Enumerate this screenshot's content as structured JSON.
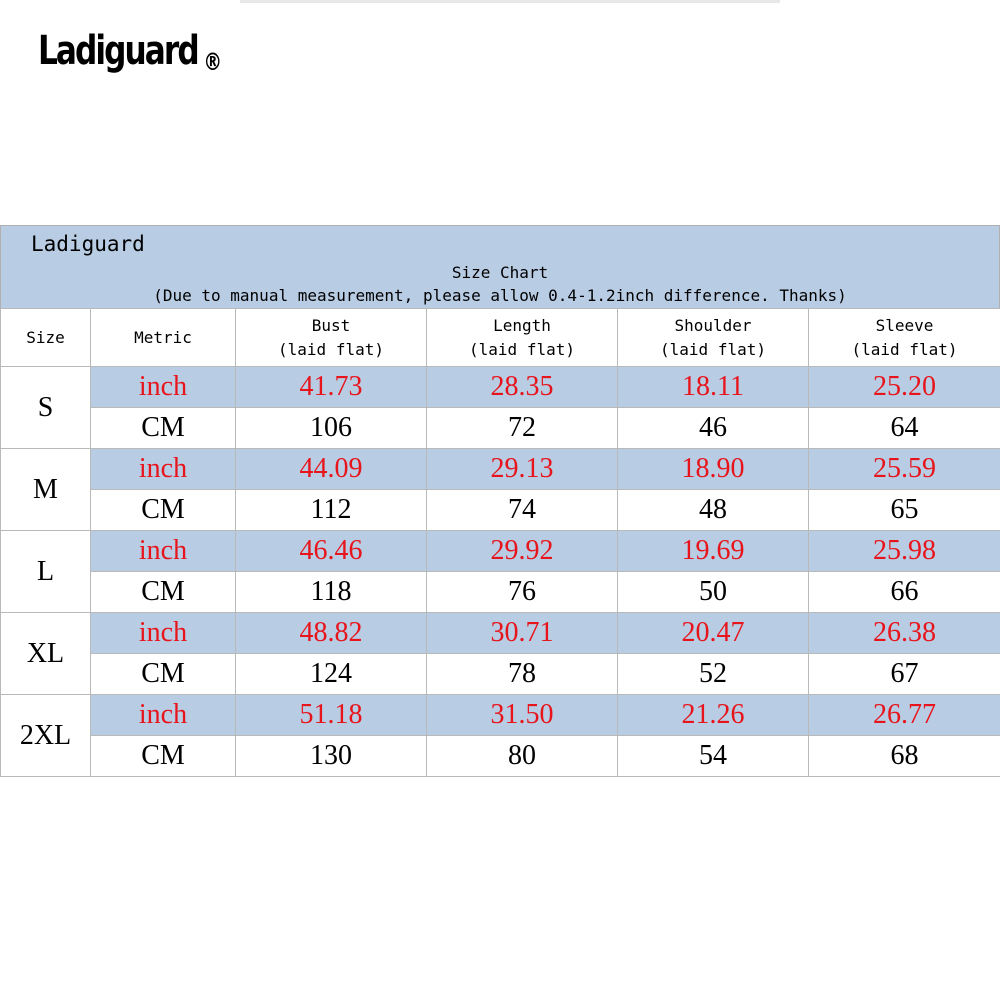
{
  "logo": {
    "text": "Ladiguard",
    "mark": "®"
  },
  "chart_header": {
    "brand": "Ladiguard",
    "title": "Size Chart",
    "note": "(Due to manual measurement, please allow 0.4-1.2inch difference. Thanks)"
  },
  "columns": {
    "size": "Size",
    "metric": "Metric",
    "bust": {
      "name": "Bust",
      "sub": "(laid flat)"
    },
    "length": {
      "name": "Length",
      "sub": "(laid flat)"
    },
    "shoulder": {
      "name": "Shoulder",
      "sub": "(laid flat)"
    },
    "sleeve": {
      "name": "Sleeve",
      "sub": "(laid flat)"
    }
  },
  "units": {
    "inch": "inch",
    "cm": "CM"
  },
  "rows": [
    {
      "size": "S",
      "inch": [
        "41.73",
        "28.35",
        "18.11",
        "25.20"
      ],
      "cm": [
        "106",
        "72",
        "46",
        "64"
      ]
    },
    {
      "size": "M",
      "inch": [
        "44.09",
        "29.13",
        "18.90",
        "25.59"
      ],
      "cm": [
        "112",
        "74",
        "48",
        "65"
      ]
    },
    {
      "size": "L",
      "inch": [
        "46.46",
        "29.92",
        "19.69",
        "25.98"
      ],
      "cm": [
        "118",
        "76",
        "50",
        "66"
      ]
    },
    {
      "size": "XL",
      "inch": [
        "48.82",
        "30.71",
        "20.47",
        "26.38"
      ],
      "cm": [
        "124",
        "78",
        "52",
        "67"
      ]
    },
    {
      "size": "2XL",
      "inch": [
        "51.18",
        "31.50",
        "21.26",
        "26.77"
      ],
      "cm": [
        "130",
        "80",
        "54",
        "68"
      ]
    }
  ],
  "colors": {
    "header_band": "#b8cce4",
    "inch_text": "#e8141b"
  }
}
